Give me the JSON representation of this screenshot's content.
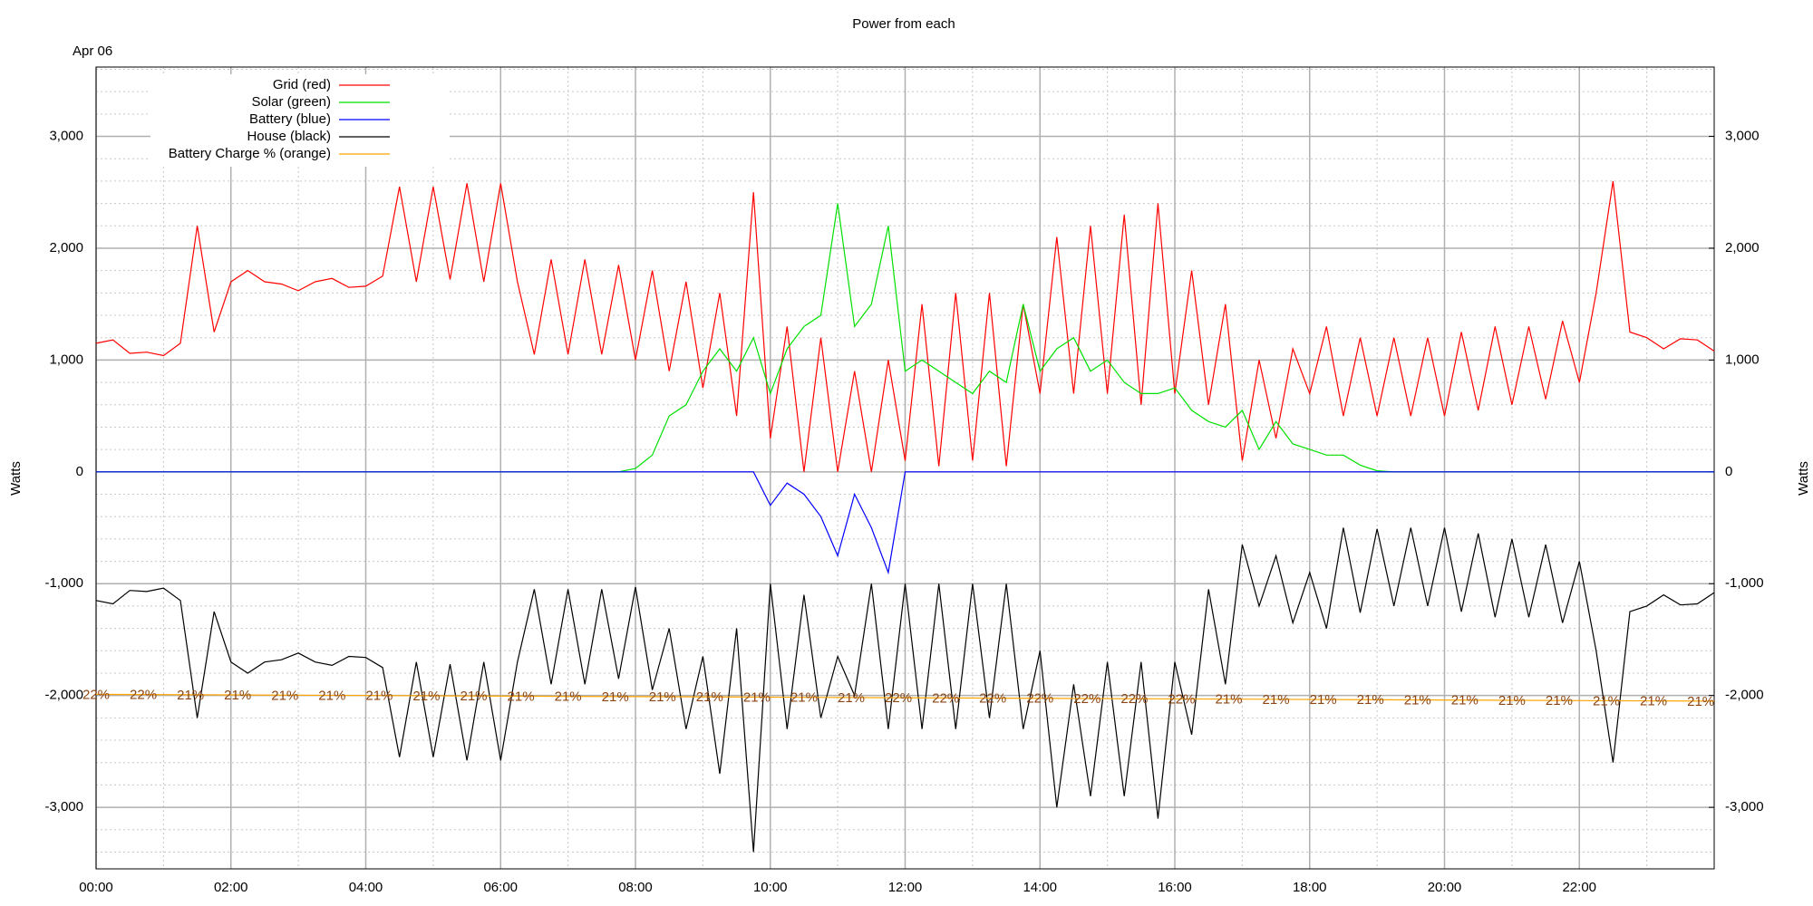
{
  "chart_data": {
    "type": "line",
    "title": "Power from each",
    "date_label": "Apr 06",
    "ylabel": "Watts",
    "y2label": "Watts",
    "legend": "top-left",
    "grid": true,
    "minor_grid": {
      "x": 1,
      "y": 200
    },
    "xlim": [
      0,
      24
    ],
    "xticks": [
      {
        "value": 0,
        "label": "00:00"
      },
      {
        "value": 2,
        "label": "02:00"
      },
      {
        "value": 4,
        "label": "04:00"
      },
      {
        "value": 6,
        "label": "06:00"
      },
      {
        "value": 8,
        "label": "08:00"
      },
      {
        "value": 10,
        "label": "10:00"
      },
      {
        "value": 12,
        "label": "12:00"
      },
      {
        "value": 14,
        "label": "14:00"
      },
      {
        "value": 16,
        "label": "16:00"
      },
      {
        "value": 18,
        "label": "18:00"
      },
      {
        "value": 20,
        "label": "20:00"
      },
      {
        "value": 22,
        "label": "22:00"
      }
    ],
    "ylim": [
      -3550,
      3620
    ],
    "yticks": [
      {
        "value": -3000,
        "label": "-3,000"
      },
      {
        "value": -2000,
        "label": "-2,000"
      },
      {
        "value": -1000,
        "label": "-1,000"
      },
      0,
      {
        "value": 1000,
        "label": "1,000"
      },
      {
        "value": 2000,
        "label": "2,000"
      },
      {
        "value": 3000,
        "label": "3,000"
      }
    ],
    "y2lim": [
      -3550,
      3620
    ],
    "y2ticks": [
      {
        "value": -3000,
        "label": "-3,000"
      },
      {
        "value": -2000,
        "label": "-2,000"
      },
      {
        "value": -1000,
        "label": "-1,000"
      },
      0,
      {
        "value": 1000,
        "label": "1,000"
      },
      {
        "value": 2000,
        "label": "2,000"
      },
      {
        "value": 3000,
        "label": "3,000"
      }
    ],
    "x": [
      0,
      0.25,
      0.5,
      0.75,
      1,
      1.25,
      1.5,
      1.75,
      2,
      2.25,
      2.5,
      2.75,
      3,
      3.25,
      3.5,
      3.75,
      4,
      4.25,
      4.5,
      4.75,
      5,
      5.25,
      5.5,
      5.75,
      6,
      6.25,
      6.5,
      6.75,
      7,
      7.25,
      7.5,
      7.75,
      8,
      8.25,
      8.5,
      8.75,
      9,
      9.25,
      9.5,
      9.75,
      10,
      10.25,
      10.5,
      10.75,
      11,
      11.25,
      11.5,
      11.75,
      12,
      12.25,
      12.5,
      12.75,
      13,
      13.25,
      13.5,
      13.75,
      14,
      14.25,
      14.5,
      14.75,
      15,
      15.25,
      15.5,
      15.75,
      16,
      16.25,
      16.5,
      16.75,
      17,
      17.25,
      17.5,
      17.75,
      18,
      18.25,
      18.5,
      18.75,
      19,
      19.25,
      19.5,
      19.75,
      20,
      20.25,
      20.5,
      20.75,
      21,
      21.25,
      21.5,
      21.75,
      22,
      22.25,
      22.5,
      22.75,
      23,
      23.25,
      23.5,
      23.75,
      24
    ],
    "series": [
      {
        "name": "Grid (red)",
        "color": "#ff0000",
        "values": [
          1150,
          1180,
          1060,
          1070,
          1040,
          1150,
          2200,
          1250,
          1700,
          1800,
          1700,
          1680,
          1620,
          1700,
          1730,
          1650,
          1660,
          1750,
          2550,
          1700,
          2550,
          1720,
          2580,
          1700,
          2580,
          1700,
          1050,
          1900,
          1050,
          1900,
          1050,
          1850,
          1000,
          1800,
          900,
          1700,
          750,
          1600,
          500,
          2500,
          300,
          1300,
          0,
          1200,
          0,
          900,
          0,
          1000,
          100,
          1500,
          50,
          1600,
          100,
          1600,
          50,
          1500,
          700,
          2100,
          700,
          2200,
          700,
          2300,
          600,
          2400,
          700,
          1800,
          600,
          1500,
          100,
          1000,
          300,
          1100,
          700,
          1300,
          500,
          1200,
          500,
          1200,
          500,
          1200,
          500,
          1250,
          550,
          1300,
          600,
          1300,
          650,
          1350,
          800,
          1600,
          2600,
          1250,
          1200,
          1100,
          1190,
          1180,
          1080
        ]
      },
      {
        "name": "Solar (green)",
        "color": "#00e000",
        "values": [
          0,
          0,
          0,
          0,
          0,
          0,
          0,
          0,
          0,
          0,
          0,
          0,
          0,
          0,
          0,
          0,
          0,
          0,
          0,
          0,
          0,
          0,
          0,
          0,
          0,
          0,
          0,
          0,
          0,
          0,
          0,
          0,
          30,
          150,
          500,
          600,
          900,
          1100,
          900,
          1200,
          700,
          1100,
          1300,
          1400,
          2400,
          1300,
          1500,
          2200,
          900,
          1000,
          900,
          800,
          700,
          900,
          800,
          1500,
          900,
          1100,
          1200,
          900,
          1000,
          800,
          700,
          700,
          750,
          550,
          450,
          400,
          550,
          200,
          450,
          250,
          200,
          150,
          150,
          60,
          10,
          0,
          0,
          0,
          0,
          0,
          0,
          0,
          0,
          0,
          0,
          0,
          0,
          0,
          0,
          0,
          0,
          0,
          0,
          0,
          0
        ]
      },
      {
        "name": "Battery (blue)",
        "color": "#0000ff",
        "values": [
          0,
          0,
          0,
          0,
          0,
          0,
          0,
          0,
          0,
          0,
          0,
          0,
          0,
          0,
          0,
          0,
          0,
          0,
          0,
          0,
          0,
          0,
          0,
          0,
          0,
          0,
          0,
          0,
          0,
          0,
          0,
          0,
          0,
          0,
          0,
          0,
          0,
          0,
          0,
          0,
          -300,
          -100,
          -200,
          -400,
          -750,
          -200,
          -500,
          -900,
          0,
          0,
          0,
          0,
          0,
          0,
          0,
          0,
          0,
          0,
          0,
          0,
          0,
          0,
          0,
          0,
          0,
          0,
          0,
          0,
          0,
          0,
          0,
          0,
          0,
          0,
          0,
          0,
          0,
          0,
          0,
          0,
          0,
          0,
          0,
          0,
          0,
          0,
          0,
          0,
          0,
          0,
          0,
          0,
          0,
          0,
          0,
          0,
          0
        ]
      },
      {
        "name": "House (black)",
        "color": "#000000",
        "values": [
          -1150,
          -1180,
          -1060,
          -1070,
          -1040,
          -1150,
          -2200,
          -1250,
          -1700,
          -1800,
          -1700,
          -1680,
          -1620,
          -1700,
          -1730,
          -1650,
          -1660,
          -1750,
          -2550,
          -1700,
          -2550,
          -1720,
          -2580,
          -1700,
          -2580,
          -1700,
          -1050,
          -1900,
          -1050,
          -1900,
          -1050,
          -1850,
          -1030,
          -1950,
          -1400,
          -2300,
          -1650,
          -2700,
          -1400,
          -3400,
          -1000,
          -2300,
          -1100,
          -2200,
          -1650,
          -2000,
          -1000,
          -2300,
          -1000,
          -2300,
          -1000,
          -2300,
          -1000,
          -2200,
          -1000,
          -2300,
          -1600,
          -3000,
          -1900,
          -2900,
          -1700,
          -2900,
          -1700,
          -3100,
          -1700,
          -2350,
          -1050,
          -1900,
          -650,
          -1200,
          -750,
          -1350,
          -900,
          -1400,
          -500,
          -1260,
          -510,
          -1200,
          -500,
          -1200,
          -500,
          -1250,
          -550,
          -1300,
          -600,
          -1300,
          -650,
          -1350,
          -800,
          -1600,
          -2600,
          -1250,
          -1200,
          -1100,
          -1190,
          -1180,
          -1080
        ]
      },
      {
        "name": "Battery Charge % (orange)",
        "color": "#ffa500",
        "x": [
          0,
          24
        ],
        "values": [
          -1990,
          -2050
        ]
      }
    ],
    "charge_labels": {
      "x": [
        0,
        0.7,
        1.4,
        2.1,
        2.8,
        3.5,
        4.2,
        4.9,
        5.6,
        6.3,
        7,
        7.7,
        8.4,
        9.1,
        9.8,
        10.5,
        11.2,
        11.9,
        12.6,
        13.3,
        14,
        14.7,
        15.4,
        16.1,
        16.8,
        17.5,
        18.2,
        18.9,
        19.6,
        20.3,
        21,
        21.7,
        22.4,
        23.1,
        23.8
      ],
      "labels": [
        "22%",
        "22%",
        "21%",
        "21%",
        "21%",
        "21%",
        "21%",
        "21%",
        "21%",
        "21%",
        "21%",
        "21%",
        "21%",
        "21%",
        "21%",
        "21%",
        "21%",
        "22%",
        "22%",
        "22%",
        "22%",
        "22%",
        "22%",
        "22%",
        "21%",
        "21%",
        "21%",
        "21%",
        "21%",
        "21%",
        "21%",
        "21%",
        "21%",
        "21%",
        "21%"
      ],
      "color": "#8b4513"
    }
  }
}
